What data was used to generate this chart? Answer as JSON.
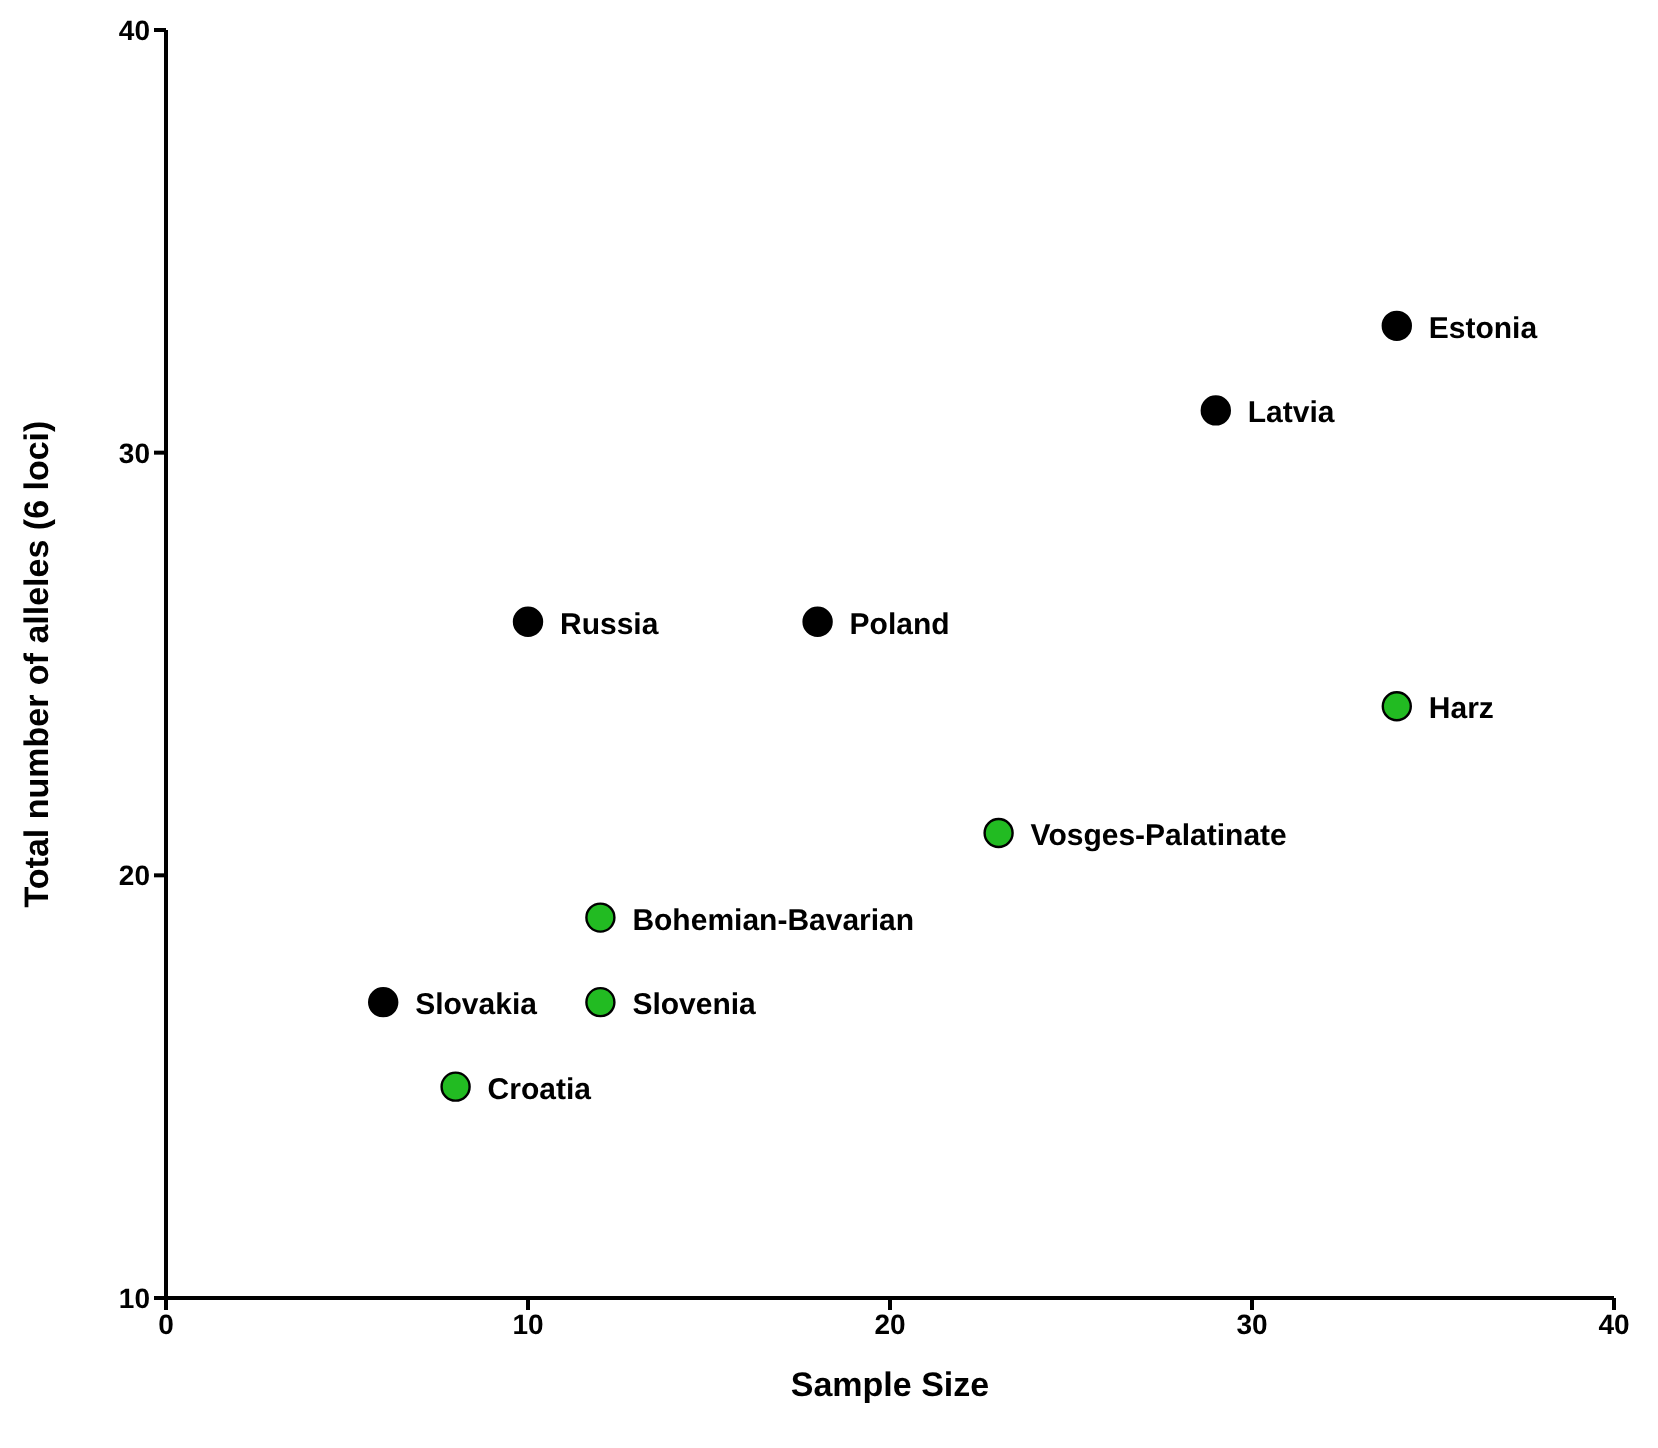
{
  "chart_data": {
    "type": "scatter",
    "xlabel": "Sample Size",
    "ylabel": "Total number of alleles (6 loci)",
    "xlim": [
      0,
      40
    ],
    "ylim": [
      10,
      40
    ],
    "xticks": [
      0,
      10,
      20,
      30,
      40
    ],
    "yticks": [
      10,
      20,
      30,
      40
    ],
    "grid": false,
    "legend": false,
    "marker": "circle",
    "series": [
      {
        "color": "#000000",
        "x": [
          34,
          29,
          10,
          18,
          6
        ],
        "values": [
          33,
          31,
          26,
          26,
          17
        ]
      },
      {
        "color": "#22bb22",
        "x": [
          34,
          23,
          12,
          12,
          8
        ],
        "values": [
          24,
          21,
          19,
          17,
          15
        ]
      }
    ],
    "annotations": [
      {
        "text": "Estonia",
        "x": 34,
        "y": 33
      },
      {
        "text": "Latvia",
        "x": 29,
        "y": 31
      },
      {
        "text": "Russia",
        "x": 10,
        "y": 26
      },
      {
        "text": "Poland",
        "x": 18,
        "y": 26
      },
      {
        "text": "Harz",
        "x": 34,
        "y": 24
      },
      {
        "text": "Vosges-Palatinate",
        "x": 23,
        "y": 21
      },
      {
        "text": "Bohemian-Bavarian",
        "x": 12,
        "y": 19
      },
      {
        "text": "Slovakia",
        "x": 6,
        "y": 17
      },
      {
        "text": "Slovenia",
        "x": 12,
        "y": 17
      },
      {
        "text": "Croatia",
        "x": 8,
        "y": 15
      }
    ]
  }
}
